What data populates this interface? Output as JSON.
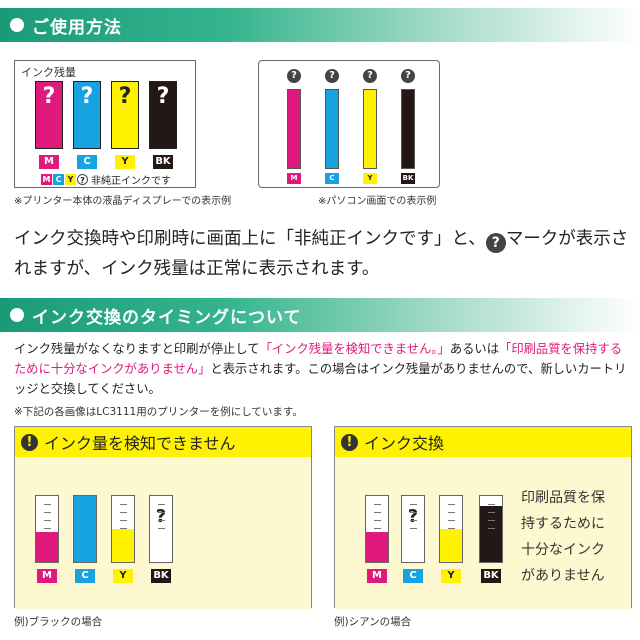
{
  "section1": {
    "title": "ご使用方法"
  },
  "lcd_panel": {
    "label": "インク残量",
    "q": "?",
    "labels": [
      "M",
      "C",
      "Y",
      "BK"
    ],
    "legend_text": "非純正インクです",
    "caption": "※プリンター本体の液晶ディスプレーでの表示例"
  },
  "pc_panel": {
    "q": "?",
    "labels": [
      "M",
      "C",
      "Y",
      "BK"
    ],
    "caption": "※パソコン画面での表示例"
  },
  "main_text": {
    "line1_a": "インク交換時や印刷時に画面上に「非純正インクです」と、",
    "q": "?",
    "line1_b": "マークが表示さ",
    "line2": "れますが、インク残量は正常に表示されます。"
  },
  "section2": {
    "title": "インク交換のタイミングについて"
  },
  "paragraph": {
    "p1": "インク残量がなくなりますと印刷が停止して",
    "pink1": "「インク残量を検知できません。」",
    "p2": "あるいは",
    "pink2": "「印刷品質を保持するために十分なインクがありません」",
    "p3": "と表示されます。この場合はインク残量がありませんので、新しいカートリッジと交換してください。"
  },
  "note": "※下記の各画像はLC3111用のプリンターを例にしています。",
  "screen_left": {
    "icon": "!",
    "title": "インク量を検知できません",
    "q": "?",
    "labels": [
      "M",
      "C",
      "Y",
      "BK"
    ],
    "caption": "例)ブラックの場合"
  },
  "screen_right": {
    "icon": "!",
    "title": "インク交換",
    "q": "?",
    "labels": [
      "M",
      "C",
      "Y",
      "BK"
    ],
    "message_lines": [
      "印刷品質を保",
      "持するために",
      "十分なインク",
      "がありません"
    ],
    "caption": "例)シアンの場合"
  },
  "colors": {
    "magenta": "#e0197d",
    "cyan": "#17a3e0",
    "yellow": "#fff200",
    "black": "#231815",
    "green": "#1a9a78"
  },
  "levels": {
    "left_screen": [
      0.45,
      1.0,
      0.5,
      0
    ],
    "right_screen": [
      0.45,
      0,
      0.5,
      0.85
    ]
  }
}
